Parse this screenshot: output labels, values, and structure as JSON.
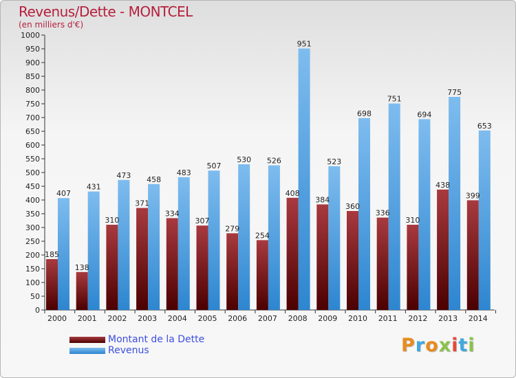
{
  "title": "Revenus/Dette - MONTCEL",
  "subtitle": "(en milliers d'€)",
  "brand": "Proxiti",
  "colors": {
    "title": "#b51f3c",
    "debt_top": "#a83a3f",
    "debt_bottom": "#4b0000",
    "revenue_top": "#7ebcef",
    "revenue_bottom": "#2d86d0",
    "legend_text": "#3d4fe0"
  },
  "legend": {
    "debt_label": "Montant de la Dette",
    "revenue_label": "Revenus"
  },
  "chart_data": {
    "type": "bar",
    "categories": [
      "2000",
      "2001",
      "2002",
      "2003",
      "2004",
      "2005",
      "2006",
      "2007",
      "2008",
      "2009",
      "2010",
      "2011",
      "2012",
      "2013",
      "2014"
    ],
    "series": [
      {
        "name": "Montant de la Dette",
        "values": [
          185,
          138,
          310,
          371,
          334,
          307,
          279,
          254,
          408,
          384,
          360,
          336,
          310,
          438,
          399
        ]
      },
      {
        "name": "Revenus",
        "values": [
          407,
          431,
          473,
          458,
          483,
          507,
          530,
          526,
          951,
          523,
          698,
          751,
          694,
          775,
          653
        ]
      }
    ],
    "ylim": [
      0,
      1000
    ],
    "yticks": [
      0,
      50,
      100,
      150,
      200,
      250,
      300,
      350,
      400,
      450,
      500,
      550,
      600,
      650,
      700,
      750,
      800,
      850,
      900,
      950,
      1000
    ],
    "grid": false,
    "legend_position": "bottom-left"
  }
}
